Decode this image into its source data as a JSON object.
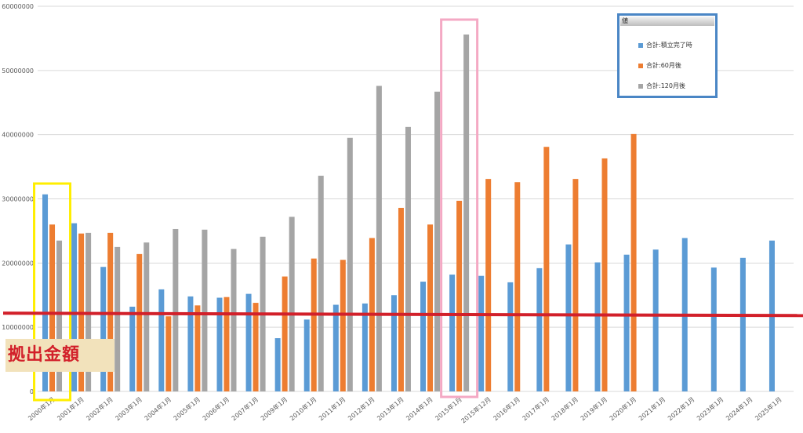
{
  "chart_data": {
    "type": "bar",
    "categories": [
      "2000年1月",
      "2001年1月",
      "2002年1月",
      "2003年1月",
      "2004年1月",
      "2005年1月",
      "2006年1月",
      "2007年1月",
      "2009年1月",
      "2010年1月",
      "2011年1月",
      "2012年1月",
      "2013年1月",
      "2014年1月",
      "2015年1月",
      "2015年12月",
      "2016年1月",
      "2017年1月",
      "2018年1月",
      "2019年1月",
      "2020年1月",
      "2021年1月",
      "2022年1月",
      "2023年1月",
      "2024年1月",
      "2025年1月"
    ],
    "series": [
      {
        "name": "合計:積立完了時",
        "color": "#5b9bd5",
        "values": [
          30700000,
          26200000,
          19400000,
          13200000,
          15900000,
          14800000,
          14600000,
          15200000,
          8300000,
          11200000,
          13500000,
          13700000,
          15000000,
          17100000,
          18200000,
          18000000,
          17000000,
          19200000,
          22900000,
          20100000,
          21300000,
          22100000,
          23900000,
          19300000,
          20800000,
          23500000
        ]
      },
      {
        "name": "合計:60月後",
        "color": "#ed7d31",
        "values": [
          26000000,
          24600000,
          24700000,
          21400000,
          11700000,
          13400000,
          14700000,
          13800000,
          17900000,
          20700000,
          20500000,
          23900000,
          28600000,
          26000000,
          29700000,
          33100000,
          32600000,
          38100000,
          33100000,
          36300000,
          40100000,
          null,
          null,
          null,
          null,
          null
        ]
      },
      {
        "name": "合計:120月後",
        "color": "#a5a5a5",
        "values": [
          23500000,
          24700000,
          22500000,
          23200000,
          25300000,
          25200000,
          22200000,
          24100000,
          27200000,
          33600000,
          39500000,
          47600000,
          41200000,
          46700000,
          55600000,
          null,
          null,
          null,
          null,
          null,
          null,
          null,
          null,
          null,
          null,
          null
        ]
      }
    ],
    "ylim": [
      0,
      60000000
    ],
    "yticks": [
      "0",
      "10000000",
      "20000000",
      "30000000",
      "40000000",
      "50000000",
      "60000000"
    ],
    "grid": true,
    "legend_title": "値",
    "legend_position": "top-right",
    "threshold": {
      "value": 12000000,
      "label": "拠出金額",
      "color": "#d2202a"
    },
    "highlights": [
      {
        "category_index": 0,
        "color": "#ffee00"
      },
      {
        "category_index": 14,
        "color": "#f4a9c4"
      }
    ]
  }
}
